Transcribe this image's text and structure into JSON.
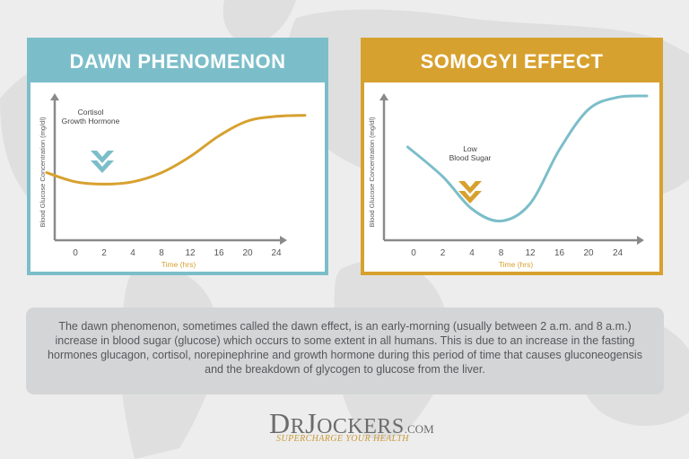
{
  "colors": {
    "background": "#ededed",
    "map": "#dcdcdc",
    "teal": "#7bbec9",
    "gold": "#d7a12f",
    "axis": "#8a8a8a",
    "info_box": "#d4d5d6",
    "text": "#55575a",
    "logo_text": "#6b6b6b",
    "logo_tagline": "#c99a36"
  },
  "panels": [
    {
      "title": "DAWN PHENOMENON",
      "accent": "#7bbec9",
      "curve_color": "#d7a12f",
      "marker_color": "#7bbec9",
      "annotation_lines": [
        "Cortisol",
        "Growth Hormone"
      ],
      "marker_icon": "chevron-down-icon"
    },
    {
      "title": "SOMOGYI EFFECT",
      "accent": "#d7a12f",
      "curve_color": "#7bbec9",
      "marker_color": "#d7a12f",
      "annotation_lines": [
        "Low",
        "Blood Sugar"
      ],
      "marker_icon": "chevron-down-icon"
    }
  ],
  "chart_data": [
    {
      "type": "line",
      "title": "DAWN PHENOMENON",
      "xlabel": "Time (hrs)",
      "ylabel": "Blood Glucose Concentration (mg/dl)",
      "x_ticks": [
        "0",
        "2",
        "4",
        "8",
        "12",
        "16",
        "20",
        "24"
      ],
      "x": [
        -1,
        0,
        1,
        2,
        3,
        4,
        5,
        6,
        7,
        8
      ],
      "y": [
        0.48,
        0.4,
        0.38,
        0.4,
        0.48,
        0.62,
        0.8,
        0.93,
        0.97,
        0.98
      ],
      "grid": false,
      "legend": "none"
    },
    {
      "type": "line",
      "title": "SOMOGYI EFFECT",
      "xlabel": "Time (hrs)",
      "ylabel": "Blood Glucose Concentration (mg/dl)",
      "x_ticks": [
        "0",
        "2",
        "4",
        "8",
        "12",
        "16",
        "20",
        "24"
      ],
      "x": [
        -0.2,
        1,
        2,
        3,
        4,
        5,
        6,
        7,
        8
      ],
      "y": [
        0.6,
        0.38,
        0.14,
        0.05,
        0.18,
        0.58,
        0.88,
        0.97,
        0.98
      ],
      "grid": false,
      "legend": "none"
    }
  ],
  "info_text": "The dawn phenomenon, sometimes called the dawn effect, is an early-morning (usually between 2 a.m. and 8 a.m.) increase in blood sugar (glucose) which occurs to some extent in all humans.  This is due to an increase in the fasting hormones glucagon, cortisol, norepinephrine and growth hormone during this period of time that causes gluconeogensis and the breakdown of glycogen to glucose from the liver.",
  "logo": {
    "d": "D",
    "r": "R",
    "j": "J",
    "ockers": "OCKERS",
    "com": ".COM",
    "tagline": "SUPERCHARGE YOUR HEALTH"
  }
}
